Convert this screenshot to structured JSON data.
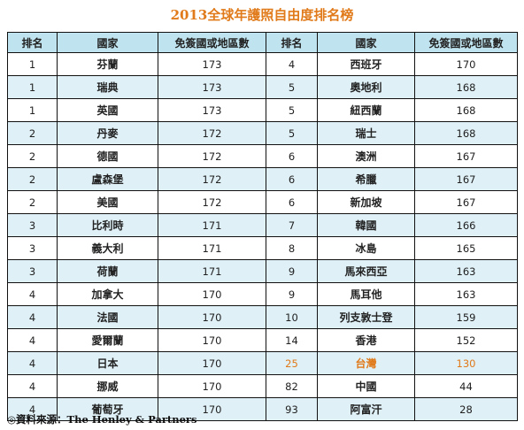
{
  "title": "2013全球年護照自由度排名榜",
  "headers": [
    "排名",
    "國家",
    "免簽國或地區數",
    "排名",
    "國家",
    "免簽國或地區數"
  ],
  "accent_color": "#e07a1a",
  "rows": [
    {
      "rank_left": "1",
      "country_left": "芬蘭",
      "count_left": "173",
      "rank_right": "4",
      "country_right": "西班牙",
      "count_right": "170"
    },
    {
      "rank_left": "1",
      "country_left": "瑞典",
      "count_left": "173",
      "rank_right": "5",
      "country_right": "奧地利",
      "count_right": "168"
    },
    {
      "rank_left": "1",
      "country_left": "英國",
      "count_left": "173",
      "rank_right": "5",
      "country_right": "紐西蘭",
      "count_right": "168"
    },
    {
      "rank_left": "2",
      "country_left": "丹麥",
      "count_left": "172",
      "rank_right": "5",
      "country_right": "瑞士",
      "count_right": "168"
    },
    {
      "rank_left": "2",
      "country_left": "德國",
      "count_left": "172",
      "rank_right": "6",
      "country_right": "澳洲",
      "count_right": "167"
    },
    {
      "rank_left": "2",
      "country_left": "盧森堡",
      "count_left": "172",
      "rank_right": "6",
      "country_right": "希臘",
      "count_right": "167"
    },
    {
      "rank_left": "2",
      "country_left": "美國",
      "count_left": "172",
      "rank_right": "6",
      "country_right": "新加坡",
      "count_right": "167"
    },
    {
      "rank_left": "3",
      "country_left": "比利時",
      "count_left": "171",
      "rank_right": "7",
      "country_right": "韓國",
      "count_right": "166"
    },
    {
      "rank_left": "3",
      "country_left": "義大利",
      "count_left": "171",
      "rank_right": "8",
      "country_right": "冰島",
      "count_right": "165"
    },
    {
      "rank_left": "3",
      "country_left": "荷蘭",
      "count_left": "171",
      "rank_right": "9",
      "country_right": "馬來西亞",
      "count_right": "163"
    },
    {
      "rank_left": "4",
      "country_left": "加拿大",
      "count_left": "170",
      "rank_right": "9",
      "country_right": "馬耳他",
      "count_right": "163"
    },
    {
      "rank_left": "4",
      "country_left": "法國",
      "count_left": "170",
      "rank_right": "10",
      "country_right": "列支敦士登",
      "count_right": "159"
    },
    {
      "rank_left": "4",
      "country_left": "愛爾蘭",
      "count_left": "170",
      "rank_right": "14",
      "country_right": "香港",
      "count_right": "152"
    },
    {
      "rank_left": "4",
      "country_left": "日本",
      "count_left": "170",
      "rank_right": "25",
      "country_right": "台灣",
      "count_right": "130",
      "highlight_right": true
    },
    {
      "rank_left": "4",
      "country_left": "挪威",
      "count_left": "170",
      "rank_right": "82",
      "country_right": "中國",
      "count_right": "44"
    },
    {
      "rank_left": "4",
      "country_left": "葡萄牙",
      "count_left": "170",
      "rank_right": "93",
      "country_right": "阿富汗",
      "count_right": "28"
    }
  ],
  "source": "◎資料來源：The Henley & Partners"
}
